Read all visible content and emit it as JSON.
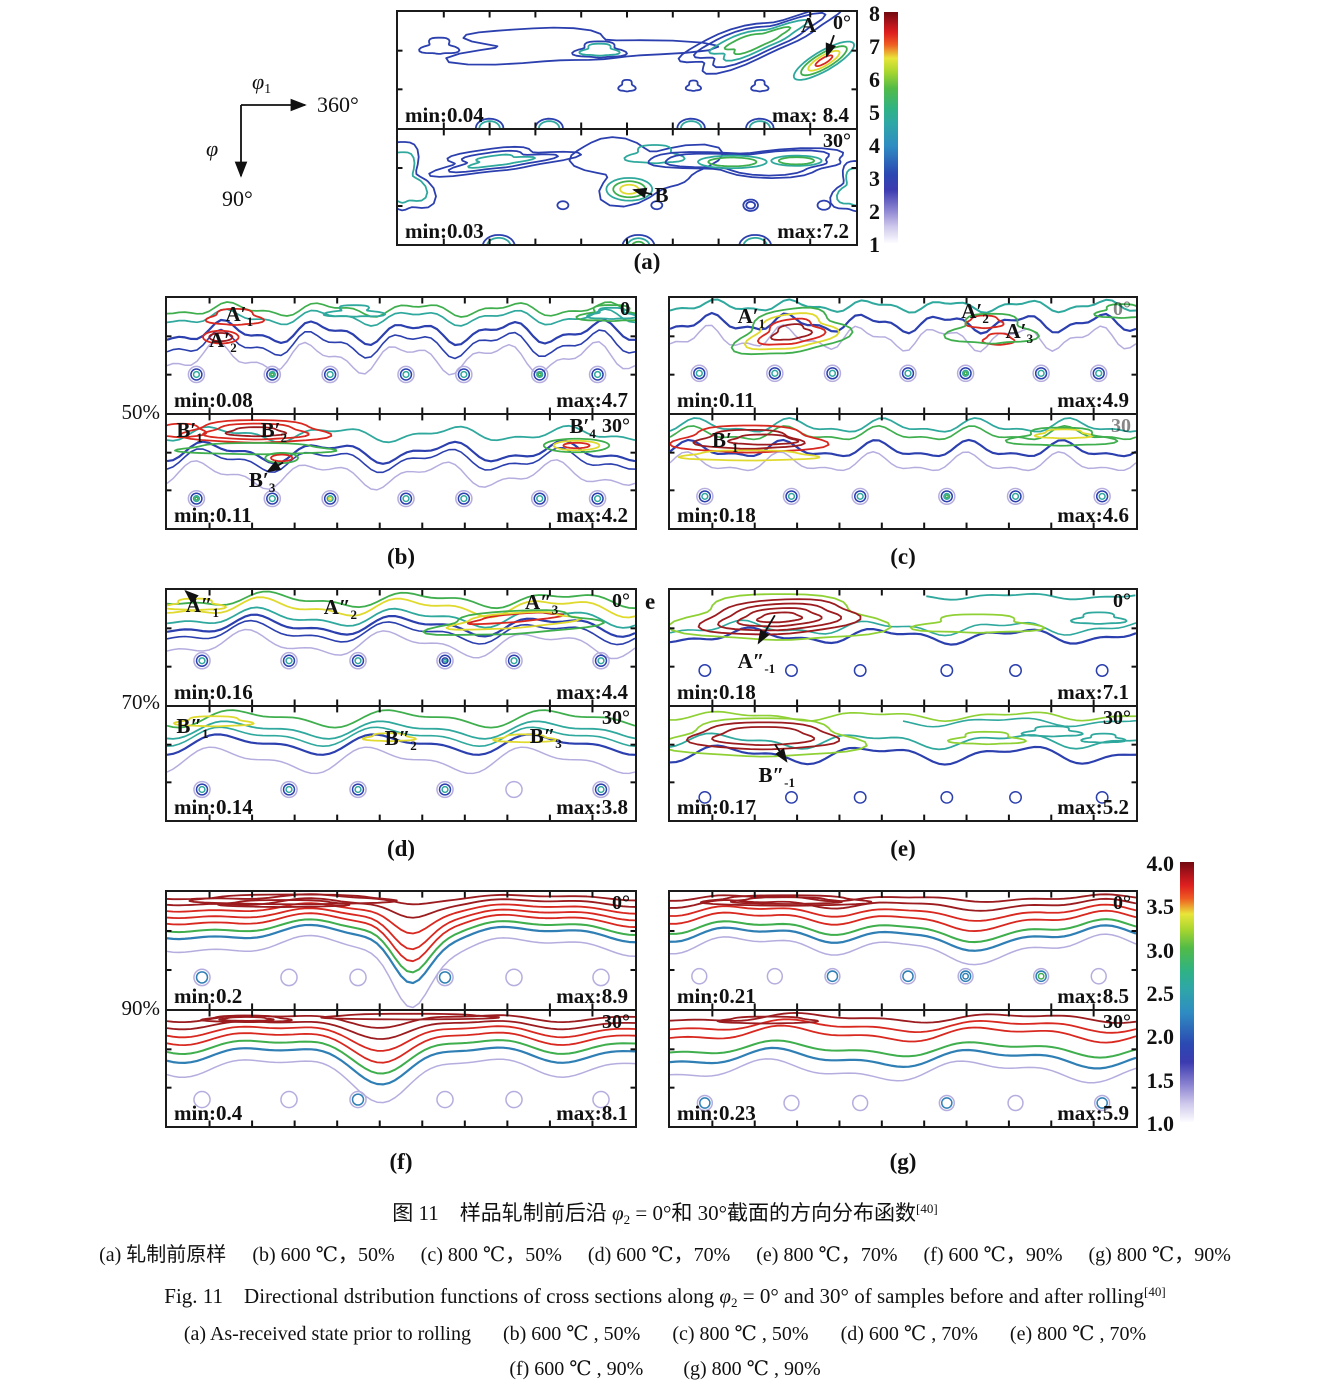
{
  "figure": {
    "axis_legend": {
      "phi1": "φ",
      "phi1_sub": "1",
      "phi1_end": "360°",
      "phi": "φ",
      "phi_end": "90°"
    },
    "colorbar_top": {
      "ticks": [
        "8",
        "7",
        "6",
        "5",
        "4",
        "3",
        "2",
        "1"
      ]
    },
    "colorbar_bottom": {
      "ticks": [
        "4.0",
        "3.5",
        "3.0",
        "2.5",
        "2.0",
        "1.5",
        "1.0"
      ]
    },
    "row_labels": {
      "r50": "50%",
      "r70": "70%",
      "r90": "90%"
    },
    "stray_label": "e",
    "panels": {
      "a": {
        "label": "(a)",
        "sections": [
          {
            "angle": "0°",
            "min": "min:0.04",
            "max": "max: 8.4",
            "peaks": [
              {
                "base": "A",
                "sub": ""
              }
            ]
          },
          {
            "angle": "30°",
            "min": "min:0.03",
            "max": "max:7.2",
            "peaks": [
              {
                "base": "B",
                "sub": ""
              }
            ]
          }
        ]
      },
      "b": {
        "label": "(b)",
        "sections": [
          {
            "angle": "0",
            "min": "min:0.08",
            "max": "max:4.7",
            "peaks": [
              {
                "base": "A′",
                "sub": "1"
              },
              {
                "base": "A′",
                "sub": "2"
              }
            ]
          },
          {
            "angle": "30°",
            "min": "min:0.11",
            "max": "max:4.2",
            "peaks": [
              {
                "base": "B′",
                "sub": "1"
              },
              {
                "base": "B′",
                "sub": "2"
              },
              {
                "base": "B′",
                "sub": "4"
              },
              {
                "base": "B′",
                "sub": "3"
              }
            ]
          }
        ]
      },
      "c": {
        "label": "(c)",
        "sections": [
          {
            "angle": "0°",
            "min": "min:0.11",
            "max": "max:4.9",
            "peaks": [
              {
                "base": "A′",
                "sub": "1"
              },
              {
                "base": "A′",
                "sub": "2"
              },
              {
                "base": "A′",
                "sub": "3"
              }
            ]
          },
          {
            "angle": "30",
            "min": "min:0.18",
            "max": "max:4.6",
            "peaks": [
              {
                "base": "B′",
                "sub": "1"
              }
            ]
          }
        ]
      },
      "d": {
        "label": "(d)",
        "sections": [
          {
            "angle": "0°",
            "min": "min:0.16",
            "max": "max:4.4",
            "peaks": [
              {
                "base": "A″",
                "sub": "1"
              },
              {
                "base": "A″",
                "sub": "2"
              },
              {
                "base": "A″",
                "sub": "3"
              }
            ]
          },
          {
            "angle": "30°",
            "min": "min:0.14",
            "max": "max:3.8",
            "peaks": [
              {
                "base": "B″",
                "sub": "1"
              },
              {
                "base": "B″",
                "sub": "2"
              },
              {
                "base": "B″",
                "sub": "3"
              }
            ]
          }
        ]
      },
      "e": {
        "label": "(e)",
        "sections": [
          {
            "angle": "0°",
            "min": "min:0.18",
            "max": "max:7.1",
            "peaks": [
              {
                "base": "A″",
                "sub": "-1"
              }
            ]
          },
          {
            "angle": "30°",
            "min": "min:0.17",
            "max": "max:5.2",
            "peaks": [
              {
                "base": "B″",
                "sub": "-1"
              }
            ]
          }
        ]
      },
      "f": {
        "label": "(f)",
        "sections": [
          {
            "angle": "0°",
            "min": "min:0.2",
            "max": "max:8.9",
            "peaks": []
          },
          {
            "angle": "30°",
            "min": "min:0.4",
            "max": "max:8.1",
            "peaks": []
          }
        ]
      },
      "g": {
        "label": "(g)",
        "sections": [
          {
            "angle": "0°",
            "min": "min:0.21",
            "max": "max:8.5",
            "peaks": []
          },
          {
            "angle": "30°",
            "min": "min:0.23",
            "max": "max:5.9",
            "peaks": []
          }
        ]
      }
    }
  },
  "caption": {
    "zh_title_pre": "图 11　样品轧制前后沿 ",
    "phi": "φ",
    "phi_sub": "2",
    "zh_title_post": " = 0°和 30°截面的方向分布函数",
    "ref": "[40]",
    "zh_items": [
      "(a) 轧制前原样",
      "(b) 600 ℃，50%",
      "(c) 800 ℃，50%",
      "(d) 600 ℃，70%",
      "(e) 800 ℃，70%",
      "(f) 600 ℃，90%",
      "(g) 800 ℃，90%"
    ],
    "en_title_pre": "Fig. 11　Directional dstribution functions of cross sections along ",
    "en_title_post": " = 0° and 30° of samples before and after rolling",
    "en_items_1": [
      "(a) As-received state prior to rolling",
      "(b) 600 ℃ , 50%",
      "(c) 800 ℃ , 50%",
      "(d) 600 ℃ , 70%",
      "(e) 800 ℃ , 70%"
    ],
    "en_items_2": [
      "(f) 600 ℃ , 90%",
      "(g) 800 ℃ , 90%"
    ]
  }
}
